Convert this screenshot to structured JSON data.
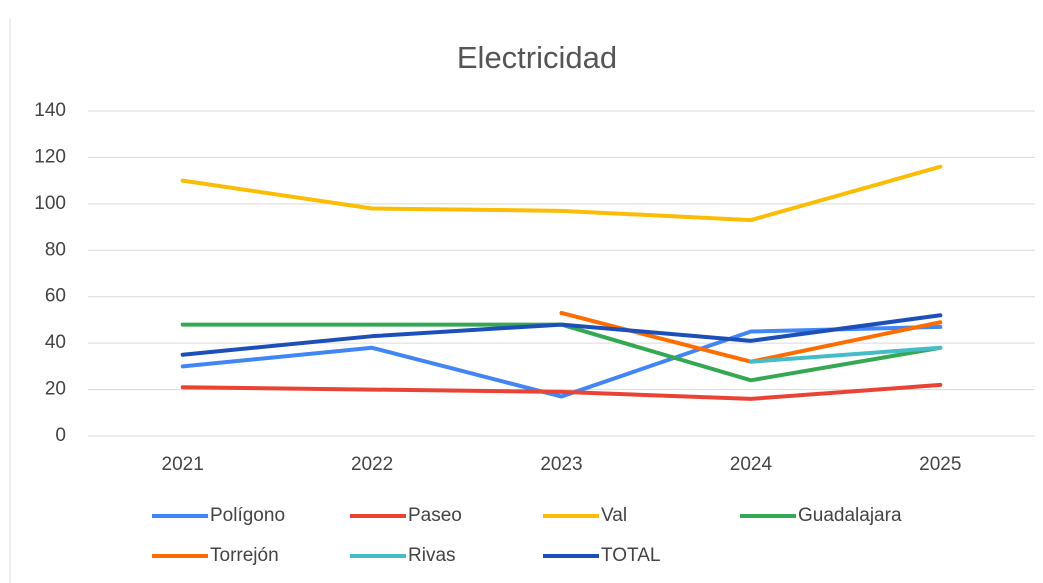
{
  "chart_data": {
    "type": "line",
    "title": "Electricidad",
    "categories": [
      "2021",
      "2022",
      "2023",
      "2024",
      "2025"
    ],
    "series": [
      {
        "name": "Polígono",
        "color": "#4285f4",
        "values": [
          30,
          38,
          17,
          45,
          47
        ]
      },
      {
        "name": "Paseo",
        "color": "#ea4335",
        "values": [
          21,
          20,
          19,
          16,
          22
        ]
      },
      {
        "name": "Val",
        "color": "#fbbc04",
        "values": [
          110,
          98,
          97,
          93,
          116
        ]
      },
      {
        "name": "Guadalajara",
        "color": "#34a853",
        "values": [
          48,
          48,
          48,
          24,
          38
        ]
      },
      {
        "name": "Torrejón",
        "color": "#ff6d01",
        "values": [
          null,
          null,
          53,
          32,
          49
        ]
      },
      {
        "name": "Rivas",
        "color": "#46bdc6",
        "values": [
          null,
          null,
          null,
          32,
          38
        ]
      },
      {
        "name": "TOTAL",
        "color": "#1c4fb8",
        "values": [
          35,
          43,
          48,
          41,
          52
        ]
      }
    ],
    "ylim": [
      0,
      140
    ],
    "yticks": [
      0,
      20,
      40,
      60,
      80,
      100,
      120,
      140
    ],
    "grid": true,
    "legend": "bottom"
  }
}
